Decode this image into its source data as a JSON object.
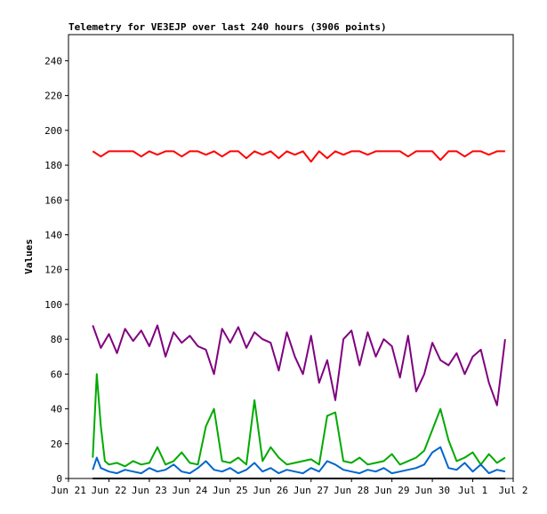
{
  "chart_data": {
    "type": "line",
    "title": "Telemetry for VE3EJP over last 240 hours (3906 points)",
    "xlabel": "",
    "ylabel": "Values",
    "ylim": [
      0,
      255
    ],
    "yticks": [
      0,
      20,
      40,
      60,
      80,
      100,
      120,
      140,
      160,
      180,
      200,
      220,
      240
    ],
    "xlim": [
      "2024-06-21",
      "2024-07-02"
    ],
    "xticks": [
      "Jun 21",
      "Jun 22",
      "Jun 23",
      "Jun 24",
      "Jun 25",
      "Jun 26",
      "Jun 27",
      "Jun 28",
      "Jun 29",
      "Jun 30",
      "Jul 1",
      "Jul 2"
    ],
    "grid": false,
    "legend": "none",
    "series": [
      {
        "color": "#ff0000",
        "x": [
          21.6,
          21.8,
          22.0,
          22.2,
          22.4,
          22.6,
          22.8,
          23.0,
          23.2,
          23.4,
          23.6,
          23.8,
          24.0,
          24.2,
          24.4,
          24.6,
          24.8,
          25.0,
          25.2,
          25.4,
          25.6,
          25.8,
          26.0,
          26.2,
          26.4,
          26.6,
          26.8,
          27.0,
          27.2,
          27.4,
          27.6,
          27.8,
          28.0,
          28.2,
          28.4,
          28.6,
          28.8,
          29.0,
          29.2,
          29.4,
          29.6,
          29.8,
          30.0,
          30.2,
          30.4,
          30.6,
          30.8,
          31.0,
          31.2,
          31.4,
          31.6,
          31.8
        ],
        "values": [
          188,
          185,
          188,
          188,
          188,
          188,
          185,
          188,
          186,
          188,
          188,
          185,
          188,
          188,
          186,
          188,
          185,
          188,
          188,
          184,
          188,
          186,
          188,
          184,
          188,
          186,
          188,
          182,
          188,
          184,
          188,
          186,
          188,
          188,
          186,
          188,
          188,
          188,
          188,
          185,
          188,
          188,
          188,
          183,
          188,
          188,
          185,
          188,
          188,
          186,
          188,
          188
        ]
      },
      {
        "color": "#800080",
        "x": [
          21.6,
          21.8,
          22.0,
          22.2,
          22.4,
          22.6,
          22.8,
          23.0,
          23.2,
          23.4,
          23.6,
          23.8,
          24.0,
          24.2,
          24.4,
          24.6,
          24.8,
          25.0,
          25.2,
          25.4,
          25.6,
          25.8,
          26.0,
          26.2,
          26.4,
          26.6,
          26.8,
          27.0,
          27.2,
          27.4,
          27.6,
          27.8,
          28.0,
          28.2,
          28.4,
          28.6,
          28.8,
          29.0,
          29.2,
          29.4,
          29.6,
          29.8,
          30.0,
          30.2,
          30.4,
          30.6,
          30.8,
          31.0,
          31.2,
          31.4,
          31.6,
          31.8
        ],
        "values": [
          88,
          75,
          83,
          72,
          86,
          79,
          85,
          76,
          88,
          70,
          84,
          78,
          82,
          76,
          74,
          60,
          86,
          78,
          87,
          75,
          84,
          80,
          78,
          62,
          84,
          70,
          60,
          82,
          55,
          68,
          45,
          80,
          85,
          65,
          84,
          70,
          80,
          76,
          58,
          82,
          50,
          60,
          78,
          68,
          65,
          72,
          60,
          70,
          74,
          55,
          42,
          80
        ]
      },
      {
        "color": "#00aa00",
        "x": [
          21.6,
          21.7,
          21.8,
          21.9,
          22.0,
          22.2,
          22.4,
          22.6,
          22.8,
          23.0,
          23.2,
          23.4,
          23.6,
          23.8,
          24.0,
          24.2,
          24.4,
          24.6,
          24.8,
          25.0,
          25.2,
          25.4,
          25.6,
          25.8,
          26.0,
          26.2,
          26.4,
          26.6,
          26.8,
          27.0,
          27.2,
          27.4,
          27.6,
          27.8,
          28.0,
          28.2,
          28.4,
          28.6,
          28.8,
          29.0,
          29.2,
          29.4,
          29.6,
          29.8,
          30.0,
          30.2,
          30.4,
          30.6,
          30.8,
          31.0,
          31.2,
          31.4,
          31.6,
          31.8
        ],
        "values": [
          12,
          60,
          30,
          10,
          8,
          9,
          7,
          10,
          8,
          9,
          18,
          8,
          10,
          15,
          9,
          8,
          30,
          40,
          10,
          9,
          12,
          8,
          45,
          10,
          18,
          12,
          8,
          9,
          10,
          11,
          8,
          36,
          38,
          10,
          9,
          12,
          8,
          9,
          10,
          14,
          8,
          10,
          12,
          16,
          28,
          40,
          22,
          10,
          12,
          15,
          8,
          14,
          9,
          12
        ]
      },
      {
        "color": "#0066cc",
        "x": [
          21.6,
          21.7,
          21.8,
          22.0,
          22.2,
          22.4,
          22.6,
          22.8,
          23.0,
          23.2,
          23.4,
          23.6,
          23.8,
          24.0,
          24.2,
          24.4,
          24.6,
          24.8,
          25.0,
          25.2,
          25.4,
          25.6,
          25.8,
          26.0,
          26.2,
          26.4,
          26.6,
          26.8,
          27.0,
          27.2,
          27.4,
          27.6,
          27.8,
          28.0,
          28.2,
          28.4,
          28.6,
          28.8,
          29.0,
          29.2,
          29.4,
          29.6,
          29.8,
          30.0,
          30.2,
          30.4,
          30.6,
          30.8,
          31.0,
          31.2,
          31.4,
          31.6,
          31.8
        ],
        "values": [
          5,
          12,
          6,
          4,
          3,
          5,
          4,
          3,
          6,
          4,
          5,
          8,
          4,
          3,
          6,
          10,
          5,
          4,
          6,
          3,
          5,
          9,
          4,
          6,
          3,
          5,
          4,
          3,
          6,
          4,
          10,
          8,
          5,
          4,
          3,
          5,
          4,
          6,
          3,
          4,
          5,
          6,
          8,
          15,
          18,
          6,
          5,
          9,
          4,
          8,
          3,
          5,
          4
        ]
      },
      {
        "color": "#000000",
        "x": [
          21.6,
          31.8
        ],
        "values": [
          0,
          0
        ]
      }
    ]
  }
}
